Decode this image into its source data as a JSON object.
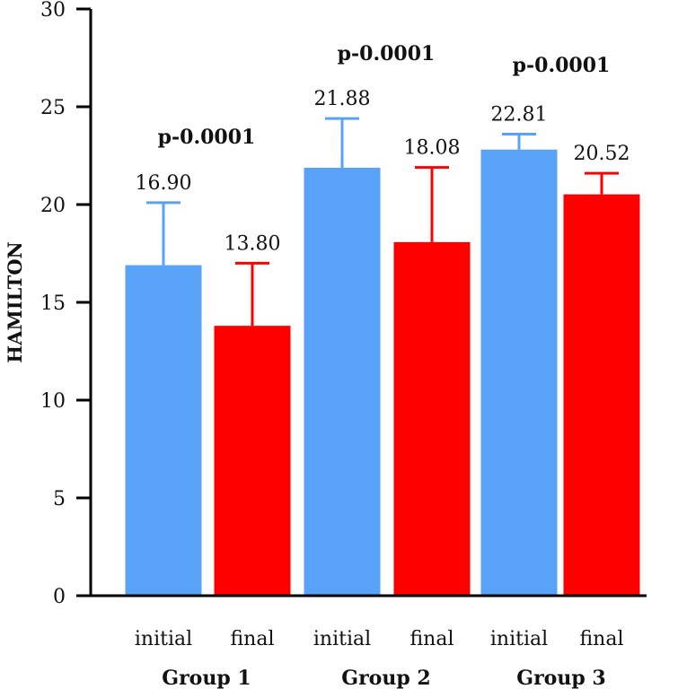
{
  "chart_data": {
    "type": "bar",
    "title": "",
    "xlabel": "",
    "ylabel": "HAMILTON",
    "ylim": [
      0,
      30
    ],
    "yticks": [
      0,
      5,
      10,
      15,
      20,
      25,
      30
    ],
    "colors": {
      "initial": "#58A2F8",
      "final": "#FF0000",
      "axis": "#000000"
    },
    "bars": [
      {
        "group": "Group 1",
        "label": "initial",
        "series": "initial",
        "value": 16.9,
        "value_label": "16.90",
        "error": 20.1
      },
      {
        "group": "Group 1",
        "label": "final",
        "series": "final",
        "value": 13.8,
        "value_label": "13.80",
        "error": 17.0
      },
      {
        "group": "Group 2",
        "label": "initial",
        "series": "initial",
        "value": 21.88,
        "value_label": "21.88",
        "error": 24.4
      },
      {
        "group": "Group 2",
        "label": "final",
        "series": "final",
        "value": 18.08,
        "value_label": "18.08",
        "error": 21.9
      },
      {
        "group": "Group 3",
        "label": "initial",
        "series": "initial",
        "value": 22.81,
        "value_label": "22.81",
        "error": 23.6
      },
      {
        "group": "Group 3",
        "label": "final",
        "series": "final",
        "value": 20.52,
        "value_label": "20.52",
        "error": 21.6
      }
    ],
    "groups": [
      {
        "name": "Group 1",
        "p_value": "p-0.0001"
      },
      {
        "name": "Group 2",
        "p_value": "p-0.0001"
      },
      {
        "name": "Group 3",
        "p_value": "p-0.0001"
      }
    ]
  }
}
